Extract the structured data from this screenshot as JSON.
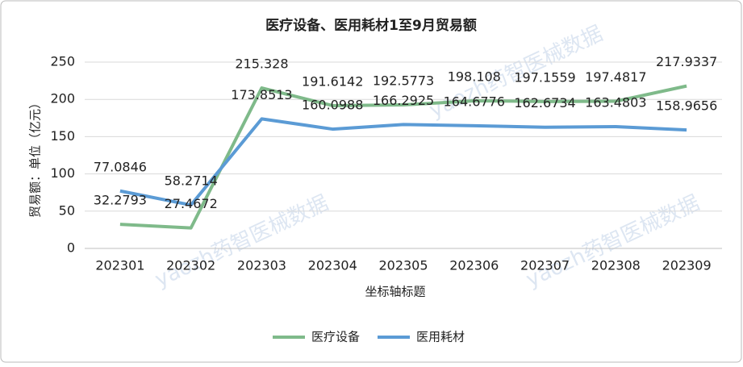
{
  "chart_data": {
    "type": "line",
    "title": "医疗设备、医用耗材1至9月贸易额",
    "x_label": "坐标轴标题",
    "y_label": "贸易额：单位（亿元）",
    "watermark": "yaozh药智医械数据",
    "categories": [
      "202301",
      "202302",
      "202303",
      "202304",
      "202305",
      "202306",
      "202307",
      "202308",
      "202309"
    ],
    "series": [
      {
        "name": "医疗设备",
        "color": "#7fba8a",
        "values": [
          32.2793,
          27.4672,
          215.328,
          191.6142,
          192.5773,
          198.108,
          197.1559,
          197.4817,
          217.9337
        ]
      },
      {
        "name": "医用耗材",
        "color": "#5b9bd5",
        "values": [
          77.0846,
          58.2714,
          173.8513,
          160.0988,
          166.2925,
          164.6776,
          162.6734,
          163.4803,
          158.9656
        ]
      }
    ],
    "ylim": [
      0,
      250
    ],
    "yticks": [
      0,
      50,
      100,
      150,
      200,
      250
    ],
    "grid": true,
    "legend": "bottom"
  }
}
